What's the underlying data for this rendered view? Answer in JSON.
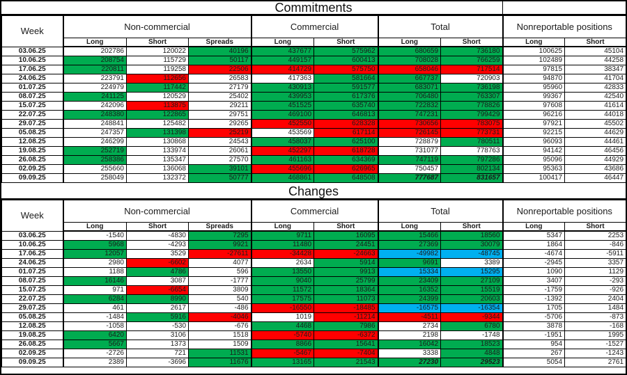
{
  "colors": {
    "green": "#00AC50",
    "red": "#FF0000",
    "blue": "#00B0F0",
    "white": "#FFFFFF"
  },
  "header": {
    "week_label": "Week",
    "groups": [
      {
        "label": "Non-commercial",
        "columns": [
          "Long",
          "Short",
          "Spreads"
        ]
      },
      {
        "label": "Commercial",
        "columns": [
          "Long",
          "Short"
        ]
      },
      {
        "label": "Total",
        "columns": [
          "Long",
          "Short"
        ]
      },
      {
        "label": "Nonreportable positions",
        "columns": [
          "Long",
          "Short"
        ]
      }
    ]
  },
  "chart_data": [
    {
      "type": "table",
      "title": "Commitments",
      "rows": [
        {
          "week": "03.06.25",
          "values": [
            202786,
            120022,
            40196,
            437677,
            575962,
            680659,
            736180,
            100625,
            45104
          ],
          "fills": [
            "w",
            "w",
            "g",
            "g",
            "g",
            "g",
            "g",
            "w",
            "w"
          ]
        },
        {
          "week": "10.06.25",
          "values": [
            208754,
            115729,
            50117,
            449157,
            600413,
            708028,
            766259,
            102489,
            44258
          ],
          "fills": [
            "g",
            "w",
            "g",
            "g",
            "g",
            "g",
            "g",
            "w",
            "w"
          ]
        },
        {
          "week": "17.06.25",
          "values": [
            220811,
            119258,
            22506,
            414729,
            575750,
            658046,
            717514,
            97815,
            38347
          ],
          "fills": [
            "g",
            "w",
            "r",
            "r",
            "r",
            "r",
            "r",
            "w",
            "w"
          ]
        },
        {
          "week": "24.06.25",
          "values": [
            223791,
            112656,
            26583,
            417363,
            581664,
            667737,
            720903,
            94870,
            41704
          ],
          "fills": [
            "w",
            "r",
            "w",
            "w",
            "g",
            "g",
            "w",
            "w",
            "w"
          ]
        },
        {
          "week": "01.07.25",
          "values": [
            224979,
            117442,
            27179,
            430913,
            591577,
            683071,
            736198,
            95960,
            42833
          ],
          "fills": [
            "w",
            "g",
            "w",
            "g",
            "g",
            "g",
            "g",
            "w",
            "w"
          ]
        },
        {
          "week": "08.07.25",
          "values": [
            241125,
            120529,
            25402,
            439953,
            617376,
            706480,
            763307,
            99367,
            42540
          ],
          "fills": [
            "g",
            "w",
            "w",
            "g",
            "g",
            "g",
            "g",
            "w",
            "w"
          ]
        },
        {
          "week": "15.07.25",
          "values": [
            242096,
            113875,
            29211,
            451525,
            635740,
            722832,
            778826,
            97608,
            41614
          ],
          "fills": [
            "w",
            "r",
            "w",
            "g",
            "g",
            "g",
            "g",
            "w",
            "w"
          ]
        },
        {
          "week": "22.07.25",
          "values": [
            248380,
            122865,
            29751,
            469100,
            646813,
            747231,
            799429,
            96216,
            44018
          ],
          "fills": [
            "g",
            "g",
            "w",
            "g",
            "g",
            "g",
            "g",
            "w",
            "w"
          ]
        },
        {
          "week": "29.07.25",
          "values": [
            248841,
            125482,
            29265,
            452550,
            628328,
            730656,
            783075,
            97921,
            45502
          ],
          "fills": [
            "w",
            "w",
            "w",
            "r",
            "r",
            "r",
            "r",
            "w",
            "w"
          ]
        },
        {
          "week": "05.08.25",
          "values": [
            247357,
            131398,
            25219,
            453569,
            617114,
            726145,
            773731,
            92215,
            44629
          ],
          "fills": [
            "w",
            "g",
            "r",
            "w",
            "r",
            "r",
            "r",
            "w",
            "w"
          ]
        },
        {
          "week": "12.08.25",
          "values": [
            246299,
            130868,
            24543,
            458037,
            625100,
            728879,
            780511,
            96093,
            44461
          ],
          "fills": [
            "w",
            "w",
            "w",
            "g",
            "g",
            "w",
            "g",
            "w",
            "w"
          ]
        },
        {
          "week": "19.08.25",
          "values": [
            252719,
            133974,
            26061,
            452297,
            618728,
            731077,
            778763,
            94142,
            46456
          ],
          "fills": [
            "g",
            "w",
            "w",
            "r",
            "r",
            "w",
            "w",
            "w",
            "w"
          ]
        },
        {
          "week": "26.08.25",
          "values": [
            258386,
            135347,
            27570,
            461163,
            634369,
            747119,
            797286,
            95096,
            44929
          ],
          "fills": [
            "g",
            "w",
            "w",
            "g",
            "g",
            "g",
            "g",
            "w",
            "w"
          ]
        },
        {
          "week": "02.09.25",
          "values": [
            255660,
            136068,
            39101,
            455696,
            626965,
            750457,
            802134,
            95363,
            43686
          ],
          "fills": [
            "w",
            "w",
            "g",
            "r",
            "r",
            "w",
            "g",
            "w",
            "w"
          ]
        },
        {
          "week": "09.09.25",
          "values": [
            258049,
            132372,
            50777,
            468861,
            648508,
            777687,
            831657,
            100417,
            46447
          ],
          "fills": [
            "w",
            "w",
            "g",
            "g",
            "g",
            "g",
            "g",
            "w",
            "w"
          ],
          "bold": [
            5,
            6
          ]
        }
      ]
    },
    {
      "type": "table",
      "title": "Changes",
      "rows": [
        {
          "week": "03.06.25",
          "values": [
            -1540,
            -4830,
            7295,
            9711,
            16095,
            15466,
            18560,
            5347,
            2253
          ],
          "fills": [
            "w",
            "w",
            "g",
            "g",
            "g",
            "g",
            "g",
            "w",
            "w"
          ]
        },
        {
          "week": "10.06.25",
          "values": [
            5968,
            -4293,
            9921,
            11480,
            24451,
            27369,
            30079,
            1864,
            -846
          ],
          "fills": [
            "g",
            "w",
            "g",
            "g",
            "g",
            "g",
            "g",
            "w",
            "w"
          ]
        },
        {
          "week": "17.06.25",
          "values": [
            12057,
            3529,
            -27611,
            -34428,
            -24663,
            -49982,
            -48745,
            -4674,
            -5911
          ],
          "fills": [
            "g",
            "w",
            "r",
            "r",
            "r",
            "b",
            "b",
            "w",
            "w"
          ]
        },
        {
          "week": "24.06.25",
          "values": [
            2980,
            -6602,
            4077,
            2634,
            5914,
            9691,
            3389,
            -2945,
            3357
          ],
          "fills": [
            "w",
            "r",
            "w",
            "w",
            "g",
            "g",
            "w",
            "w",
            "w"
          ]
        },
        {
          "week": "01.07.25",
          "values": [
            1188,
            4786,
            596,
            13550,
            9913,
            15334,
            15295,
            1090,
            1129
          ],
          "fills": [
            "w",
            "g",
            "w",
            "g",
            "g",
            "b",
            "b",
            "w",
            "w"
          ]
        },
        {
          "week": "08.07.25",
          "values": [
            16146,
            3087,
            -1777,
            9040,
            25799,
            23409,
            27109,
            3407,
            -293
          ],
          "fills": [
            "g",
            "w",
            "w",
            "g",
            "g",
            "g",
            "g",
            "w",
            "w"
          ]
        },
        {
          "week": "15.07.25",
          "values": [
            971,
            -6654,
            3809,
            11572,
            18364,
            16352,
            15519,
            -1759,
            -926
          ],
          "fills": [
            "w",
            "r",
            "w",
            "g",
            "g",
            "g",
            "g",
            "w",
            "w"
          ]
        },
        {
          "week": "22.07.25",
          "values": [
            6284,
            8990,
            540,
            17575,
            11073,
            24399,
            20603,
            -1392,
            2404
          ],
          "fills": [
            "g",
            "g",
            "w",
            "g",
            "g",
            "g",
            "g",
            "w",
            "w"
          ]
        },
        {
          "week": "29.07.25",
          "values": [
            461,
            2617,
            -486,
            -16550,
            -18485,
            -16575,
            -16354,
            1705,
            1484
          ],
          "fills": [
            "w",
            "w",
            "w",
            "r",
            "r",
            "b",
            "b",
            "w",
            "w"
          ]
        },
        {
          "week": "05.08.25",
          "values": [
            -1484,
            5916,
            -4046,
            1019,
            -11214,
            -4511,
            -9344,
            -5706,
            -873
          ],
          "fills": [
            "w",
            "g",
            "r",
            "w",
            "r",
            "r",
            "r",
            "w",
            "w"
          ]
        },
        {
          "week": "12.08.25",
          "values": [
            -1058,
            -530,
            -676,
            4468,
            7986,
            2734,
            6780,
            3878,
            -168
          ],
          "fills": [
            "w",
            "w",
            "w",
            "g",
            "g",
            "w",
            "g",
            "w",
            "w"
          ]
        },
        {
          "week": "19.08.25",
          "values": [
            6420,
            3106,
            1518,
            -5740,
            -6372,
            2198,
            -1748,
            -1951,
            1995
          ],
          "fills": [
            "g",
            "w",
            "w",
            "r",
            "r",
            "w",
            "w",
            "w",
            "w"
          ]
        },
        {
          "week": "26.08.25",
          "values": [
            5667,
            1373,
            1509,
            8866,
            15641,
            16042,
            18523,
            954,
            -1527
          ],
          "fills": [
            "g",
            "w",
            "w",
            "g",
            "g",
            "g",
            "g",
            "w",
            "w"
          ]
        },
        {
          "week": "02.09.25",
          "values": [
            -2726,
            721,
            11531,
            -5467,
            -7404,
            3338,
            4848,
            267,
            -1243
          ],
          "fills": [
            "w",
            "w",
            "g",
            "r",
            "r",
            "w",
            "g",
            "w",
            "w"
          ]
        },
        {
          "week": "09.09.25",
          "values": [
            2389,
            -3696,
            11676,
            13165,
            21543,
            27230,
            29523,
            5054,
            2761
          ],
          "fills": [
            "w",
            "w",
            "g",
            "g",
            "g",
            "g",
            "g",
            "w",
            "w"
          ],
          "bold": [
            5,
            6
          ]
        }
      ]
    }
  ]
}
